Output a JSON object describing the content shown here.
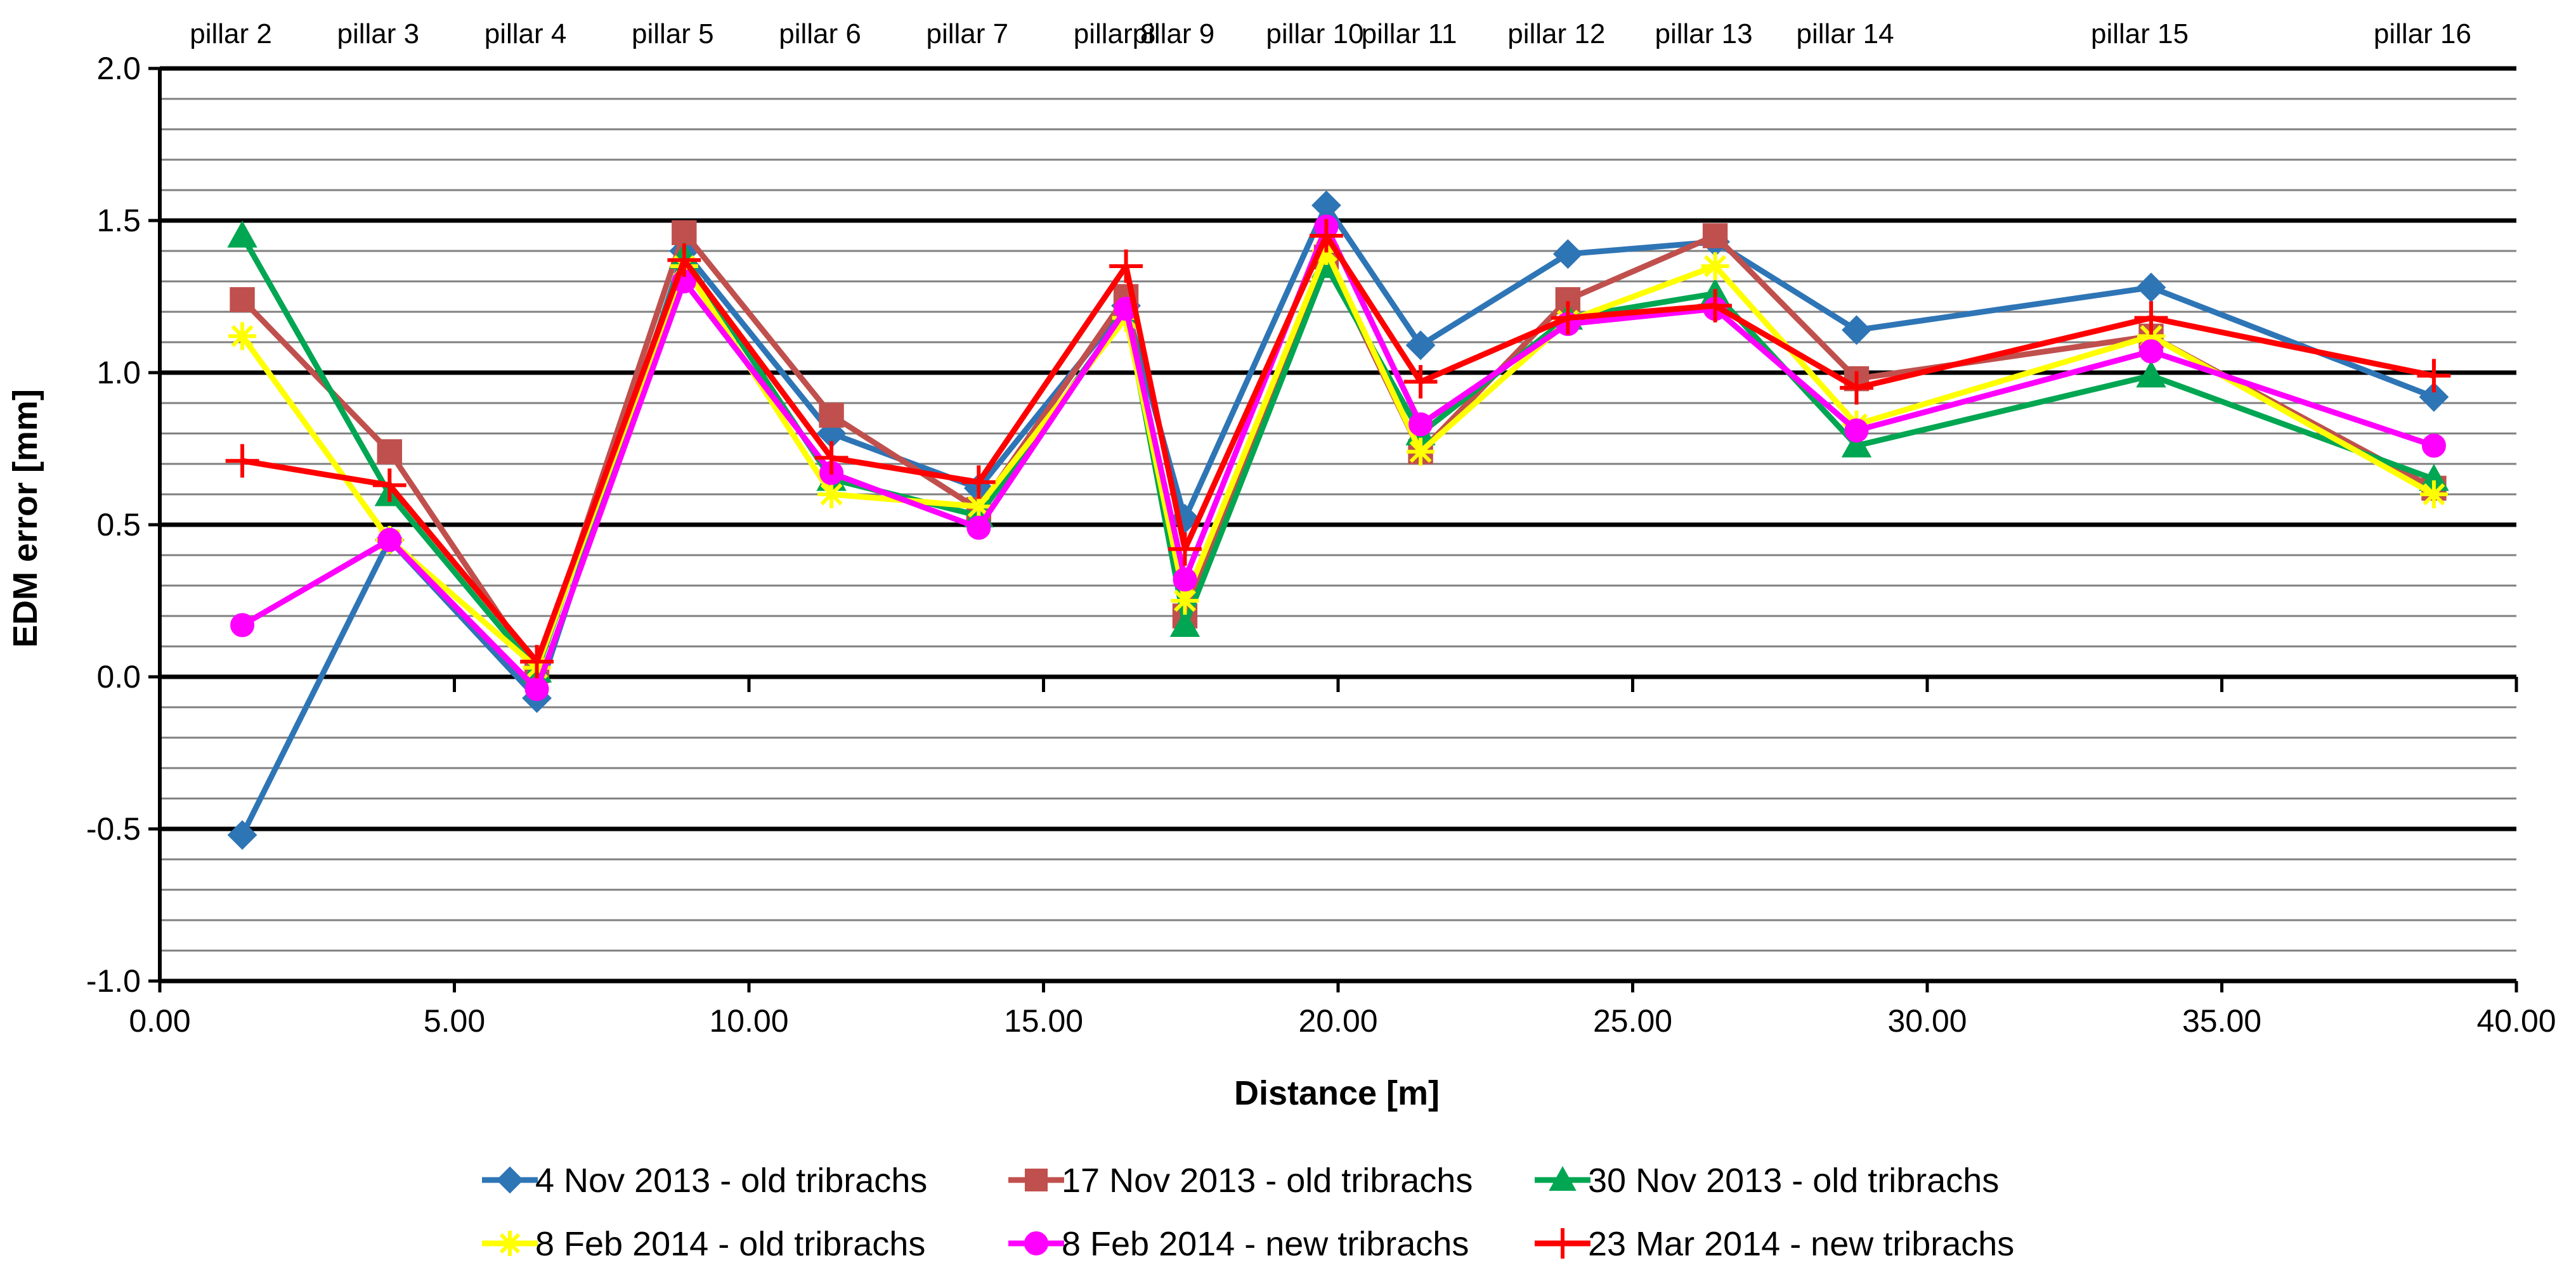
{
  "chart_data": {
    "type": "line",
    "title": "",
    "xlabel": "Distance [m]",
    "ylabel": "EDM error [mm]",
    "xlim": [
      0,
      40
    ],
    "ylim": [
      -1.0,
      2.0
    ],
    "x_ticks": [
      "0.00",
      "5.00",
      "10.00",
      "15.00",
      "20.00",
      "25.00",
      "30.00",
      "35.00",
      "40.00"
    ],
    "y_ticks": [
      "-1.0",
      "-0.5",
      "0.0",
      "0.5",
      "1.0",
      "1.5",
      "2.0"
    ],
    "grid": "horizontal major and minor lines",
    "legend_position": "bottom",
    "pillars": [
      {
        "label": "pillar 2",
        "x": 1.4
      },
      {
        "label": "pillar 3",
        "x": 3.9
      },
      {
        "label": "pillar 4",
        "x": 6.4
      },
      {
        "label": "pillar 5",
        "x": 8.9
      },
      {
        "label": "pillar 6",
        "x": 11.4
      },
      {
        "label": "pillar 7",
        "x": 13.9
      },
      {
        "label": "pillar 8",
        "x": 16.4
      },
      {
        "label": "pillar 9",
        "x": 17.4
      },
      {
        "label": "pillar 10",
        "x": 19.8
      },
      {
        "label": "pillar 11",
        "x": 21.4
      },
      {
        "label": "pillar 12",
        "x": 23.9
      },
      {
        "label": "pillar 13",
        "x": 26.4
      },
      {
        "label": "pillar 14",
        "x": 28.8
      },
      {
        "label": "pillar 15",
        "x": 33.8
      },
      {
        "label": "pillar 16",
        "x": 38.6
      }
    ],
    "x": [
      1.4,
      3.9,
      6.4,
      8.9,
      11.4,
      13.9,
      16.4,
      17.4,
      19.8,
      21.4,
      23.9,
      26.4,
      28.8,
      33.8,
      38.6
    ],
    "series": [
      {
        "name": "4 Nov 2013 - old tribrachs",
        "color": "#2e75b6",
        "marker": "diamond",
        "values": [
          -0.52,
          0.45,
          -0.07,
          1.4,
          0.8,
          0.62,
          1.22,
          0.52,
          1.55,
          1.09,
          1.39,
          1.43,
          1.14,
          1.28,
          0.92
        ]
      },
      {
        "name": "17 Nov 2013 - old tribrachs",
        "color": "#c0504d",
        "marker": "square",
        "values": [
          1.24,
          0.74,
          0.02,
          1.46,
          0.86,
          0.55,
          1.25,
          0.2,
          1.38,
          0.74,
          1.24,
          1.45,
          0.98,
          1.12,
          0.62
        ]
      },
      {
        "name": "30 Nov 2013 - old tribrachs",
        "color": "#00a651",
        "marker": "triangle",
        "values": [
          1.45,
          0.6,
          0.02,
          1.38,
          0.65,
          0.53,
          1.2,
          0.17,
          1.35,
          0.8,
          1.18,
          1.26,
          0.76,
          0.99,
          0.65
        ]
      },
      {
        "name": "8 Feb 2014 - old tribrachs",
        "color": "#ffff00",
        "marker": "star",
        "values": [
          1.12,
          0.45,
          0.03,
          1.35,
          0.6,
          0.56,
          1.18,
          0.25,
          1.4,
          0.74,
          1.17,
          1.35,
          0.83,
          1.12,
          0.6
        ]
      },
      {
        "name": "8 Feb 2014 - new tribrachs",
        "color": "#ff00ff",
        "marker": "circle",
        "values": [
          0.17,
          0.45,
          -0.04,
          1.3,
          0.67,
          0.49,
          1.21,
          0.32,
          1.48,
          0.83,
          1.16,
          1.21,
          0.81,
          1.07,
          0.76
        ]
      },
      {
        "name": "23 Mar 2014 - new tribrachs",
        "color": "#ff0000",
        "marker": "plus",
        "values": [
          0.71,
          0.63,
          0.05,
          1.37,
          0.72,
          0.64,
          1.35,
          0.42,
          1.45,
          0.97,
          1.18,
          1.22,
          0.95,
          1.18,
          0.99
        ]
      }
    ]
  }
}
